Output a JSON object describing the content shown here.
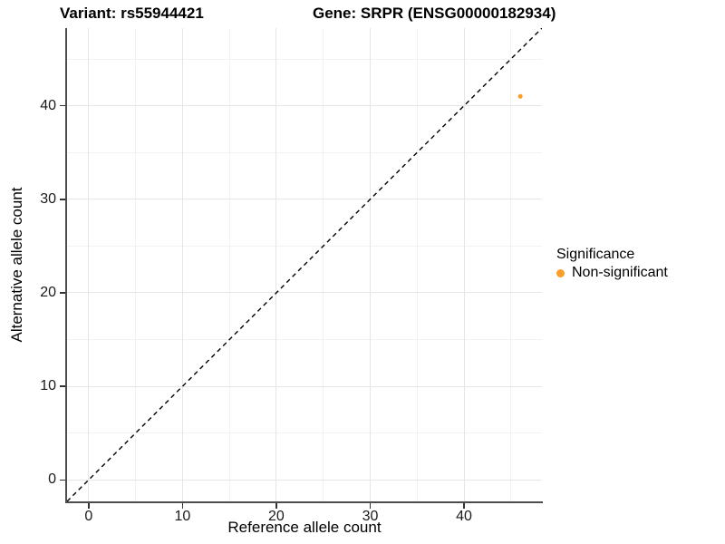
{
  "titles": {
    "variant": "Variant: rs55944421",
    "gene": "Gene: SRPR (ENSG00000182934)"
  },
  "legend": {
    "title": "Significance",
    "items": [
      {
        "label": "Non-significant",
        "color": "#fb9e26",
        "marker": "circle"
      }
    ]
  },
  "chart_data": {
    "type": "scatter",
    "title": "Variant: rs55944421   Gene: SRPR (ENSG00000182934)",
    "xlabel": "Reference allele count",
    "ylabel": "Alternative allele count",
    "xlim": [
      -2.3,
      48.3
    ],
    "ylim": [
      -2.3,
      48.3
    ],
    "x_major_ticks": [
      0,
      10,
      20,
      30,
      40
    ],
    "x_minor_ticks": [
      5,
      15,
      25,
      35,
      45
    ],
    "y_major_ticks": [
      0,
      10,
      20,
      30,
      40
    ],
    "y_minor_ticks": [
      5,
      15,
      25,
      35,
      45
    ],
    "grid": true,
    "legend_position": "right",
    "identity_line": {
      "equation": "y = x",
      "style": "dashed",
      "color": "#000000"
    },
    "series": [
      {
        "name": "Non-significant",
        "color": "#fb9e26",
        "marker_radius": 2.5,
        "points": [
          {
            "x": 46,
            "y": 41
          }
        ]
      }
    ]
  }
}
